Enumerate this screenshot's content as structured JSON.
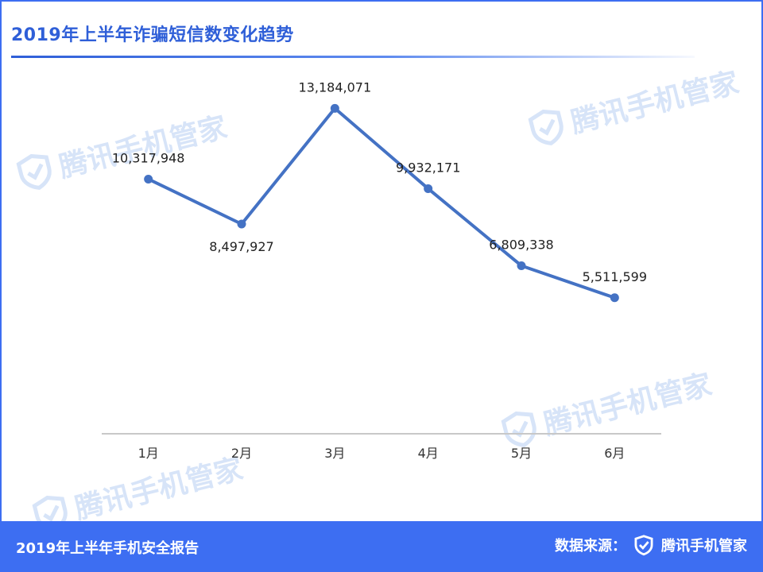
{
  "header": {
    "title": "2019年上半年诈骗短信数变化趋势"
  },
  "watermark": {
    "text": "腾讯手机管家",
    "icon": "shield-check-icon",
    "color": "#d7e4f8"
  },
  "footer": {
    "report_title": "2019年上半年手机安全报告",
    "source_label": "数据来源：",
    "brand_name": "腾讯手机管家",
    "brand_icon": "shield-check-icon",
    "background": "#3d6ef2"
  },
  "chart_data": {
    "type": "line",
    "title": "2019年上半年诈骗短信数变化趋势",
    "xlabel": "",
    "ylabel": "",
    "categories": [
      "1月",
      "2月",
      "3月",
      "4月",
      "5月",
      "6月"
    ],
    "series": [
      {
        "values": [
          10317948,
          8497927,
          13184071,
          9932171,
          6809338,
          5511599
        ],
        "labels": [
          "10,317,948",
          "8,497,927",
          "13,184,071",
          "9,932,171",
          "6,809,338",
          "5,511,599"
        ],
        "color": "#4472c4"
      }
    ],
    "ylim": [
      0,
      15000000
    ],
    "y_axis_visible": false,
    "grid": false,
    "legend": "none"
  }
}
